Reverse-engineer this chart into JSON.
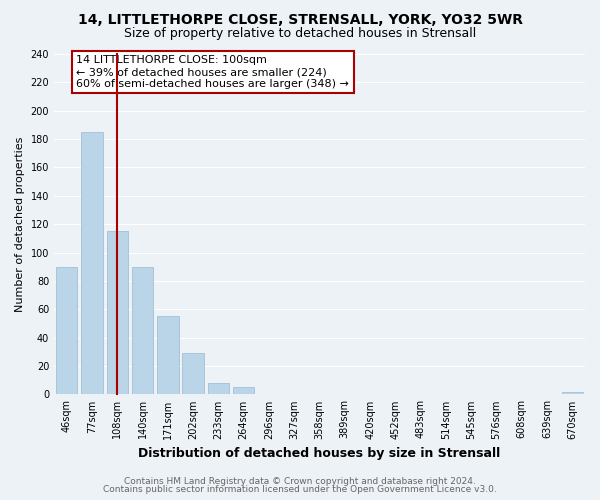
{
  "title": "14, LITTLETHORPE CLOSE, STRENSALL, YORK, YO32 5WR",
  "subtitle": "Size of property relative to detached houses in Strensall",
  "xlabel": "Distribution of detached houses by size in Strensall",
  "ylabel": "Number of detached properties",
  "footer_line1": "Contains HM Land Registry data © Crown copyright and database right 2024.",
  "footer_line2": "Contains public sector information licensed under the Open Government Licence v3.0.",
  "bar_labels": [
    "46sqm",
    "77sqm",
    "108sqm",
    "140sqm",
    "171sqm",
    "202sqm",
    "233sqm",
    "264sqm",
    "296sqm",
    "327sqm",
    "358sqm",
    "389sqm",
    "420sqm",
    "452sqm",
    "483sqm",
    "514sqm",
    "545sqm",
    "576sqm",
    "608sqm",
    "639sqm",
    "670sqm"
  ],
  "bar_values": [
    90,
    185,
    115,
    90,
    55,
    29,
    8,
    5,
    0,
    0,
    0,
    0,
    0,
    0,
    0,
    0,
    0,
    0,
    0,
    0,
    2
  ],
  "bar_color": "#bad4e8",
  "bar_edge_color": "#9ab8d0",
  "annotation_text_line1": "14 LITTLETHORPE CLOSE: 100sqm",
  "annotation_text_line2": "← 39% of detached houses are smaller (224)",
  "annotation_text_line3": "60% of semi-detached houses are larger (348) →",
  "marker_line_color": "#aa0000",
  "ylim": [
    0,
    240
  ],
  "yticks": [
    0,
    20,
    40,
    60,
    80,
    100,
    120,
    140,
    160,
    180,
    200,
    220,
    240
  ],
  "bg_color": "#edf2f7",
  "grid_color": "#ffffff",
  "title_fontsize": 10,
  "subtitle_fontsize": 9,
  "xlabel_fontsize": 9,
  "ylabel_fontsize": 8,
  "tick_fontsize": 7,
  "annotation_fontsize": 8,
  "footer_fontsize": 6.5
}
